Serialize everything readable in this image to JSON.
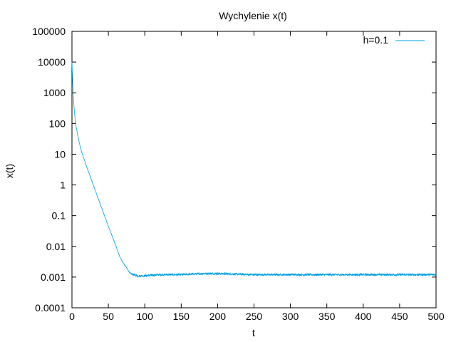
{
  "chart_data": {
    "type": "line",
    "title": "Wychylenie x(t)",
    "xlabel": "t",
    "ylabel": "x(t)",
    "xlim": [
      0,
      500
    ],
    "ylim": [
      0.0001,
      100000
    ],
    "yscale": "log",
    "xticks": [
      "0",
      "50",
      "100",
      "150",
      "200",
      "250",
      "300",
      "350",
      "400",
      "450",
      "500"
    ],
    "yticks": [
      "0.0001",
      "0.001",
      "0.01",
      "0.1",
      "1",
      "10",
      "100",
      "1000",
      "10000",
      "100000"
    ],
    "grid": false,
    "legend": "top-right",
    "series": [
      {
        "name": "h=0.1",
        "color": "#00a0e0",
        "x": [
          0,
          1,
          2,
          3,
          5,
          8,
          12,
          20,
          30,
          40,
          50,
          60,
          65,
          70,
          75,
          80,
          85,
          90,
          100,
          120,
          150,
          180,
          200,
          250,
          300,
          350,
          400,
          450,
          500
        ],
        "y": [
          10000,
          2000,
          700,
          300,
          100,
          40,
          15,
          4,
          0.9,
          0.2,
          0.045,
          0.011,
          0.005,
          0.003,
          0.002,
          0.0013,
          0.0012,
          0.0011,
          0.0011,
          0.0012,
          0.0012,
          0.0013,
          0.0013,
          0.0012,
          0.0012,
          0.0012,
          0.0012,
          0.0012,
          0.0012
        ]
      }
    ]
  }
}
